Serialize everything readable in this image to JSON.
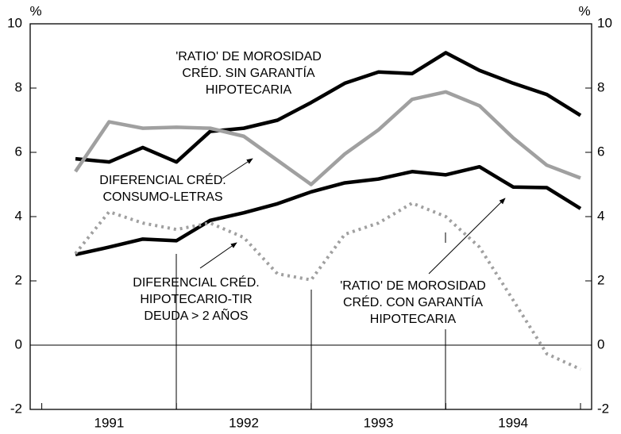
{
  "chart_data": {
    "type": "line",
    "y_unit_left": "%",
    "y_unit_right": "%",
    "categories": [
      null,
      "1991",
      null,
      null,
      null,
      "1992",
      null,
      null,
      null,
      "1993",
      null,
      null,
      null,
      "1994",
      null,
      null
    ],
    "series": [
      {
        "name": "'RATIO' DE MOROSIDAD CRÉD. SIN GARANTÍA HIPOTECARIA",
        "color": "#000000",
        "style": "solid",
        "values": [
          5.8,
          5.7,
          6.15,
          5.7,
          6.65,
          6.75,
          7.0,
          7.55,
          8.15,
          8.5,
          8.45,
          9.1,
          8.55,
          8.15,
          7.8,
          7.15
        ]
      },
      {
        "name": "DIFERENCIAL CRÉD. CONSUMO-LETRAS",
        "color": "#a0a0a0",
        "style": "solid",
        "values": [
          5.4,
          6.95,
          6.75,
          6.78,
          6.75,
          6.5,
          5.75,
          5.0,
          5.95,
          6.7,
          7.65,
          7.88,
          7.45,
          6.45,
          5.6,
          5.2
        ]
      },
      {
        "name": "'RATIO' DE MOROSIDAD CRÉD. CON GARANTÍA HIPOTECARIA",
        "color": "#000000",
        "style": "solid",
        "values": [
          2.82,
          3.05,
          3.3,
          3.25,
          3.88,
          4.12,
          4.4,
          4.77,
          5.05,
          5.17,
          5.4,
          5.3,
          5.55,
          4.92,
          4.9,
          4.25
        ]
      },
      {
        "name": "DIFERENCIAL CRÉD. HIPOTECARIO-TIR DEUDA > 2 AÑOS",
        "color": "#a0a0a0",
        "style": "dotted",
        "values": [
          2.85,
          4.15,
          3.8,
          3.6,
          3.8,
          3.35,
          2.22,
          2.03,
          3.45,
          3.8,
          4.42,
          4.0,
          3.05,
          1.4,
          -0.27,
          -0.75
        ]
      }
    ],
    "annotations": [
      {
        "lines": [
          "'RATIO' DE MOROSIDAD",
          "CRÉD. SIN GARANTÍA",
          "HIPOTECARIA"
        ]
      },
      {
        "lines": [
          "DIFERENCIAL CRÉD.",
          "CONSUMO-LETRAS"
        ]
      },
      {
        "lines": [
          "DIFERENCIAL CRÉD.",
          "HIPOTECARIO-TIR",
          "DEUDA > 2 AÑOS"
        ]
      },
      {
        "lines": [
          "'RATIO' DE MOROSIDAD",
          "CRÉD. CON GARANTÍA",
          "HIPOTECARIA"
        ]
      }
    ],
    "ylim": [
      -2,
      10
    ],
    "yticks": [
      -2,
      0,
      2,
      4,
      6,
      8,
      10
    ]
  }
}
